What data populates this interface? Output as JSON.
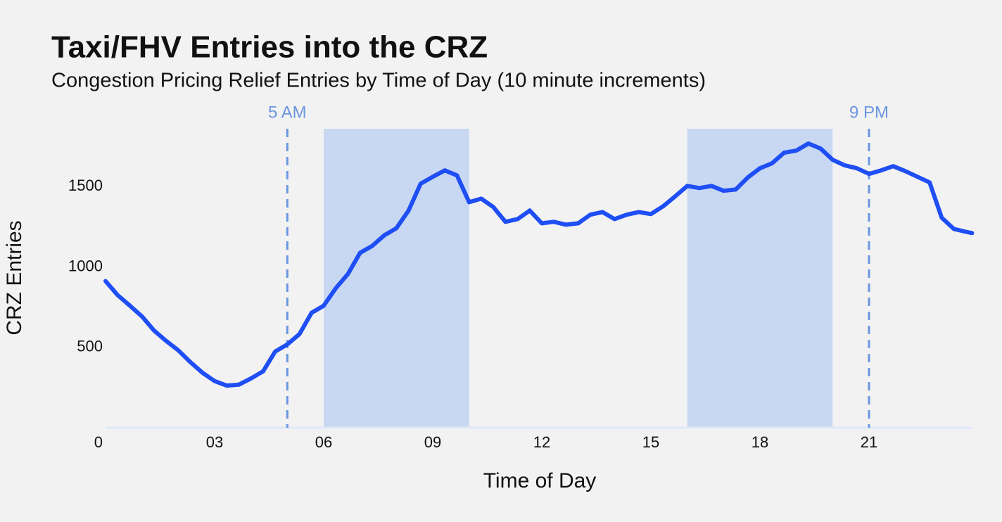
{
  "chart_data": {
    "type": "line",
    "title": "Taxi/FHV Entries into the CRZ",
    "subtitle": "Congestion Pricing Relief Entries by Time of Day (10 minute increments)",
    "x_label": "Time of Day",
    "y_label": "CRZ Entries",
    "color": "#1f4ef5",
    "x": [
      0,
      20,
      40,
      60,
      80,
      100,
      120,
      140,
      160,
      180,
      200,
      220,
      240,
      260,
      280,
      300,
      320,
      340,
      360,
      380,
      400,
      420,
      440,
      460,
      480,
      500,
      520,
      540,
      560,
      580,
      600,
      620,
      640,
      660,
      680,
      700,
      720,
      740,
      760,
      780,
      800,
      820,
      840,
      860,
      880,
      900,
      920,
      940,
      960,
      980,
      1000,
      1020,
      1040,
      1060,
      1080,
      1100,
      1120,
      1140,
      1160,
      1180,
      1200,
      1220,
      1240,
      1260,
      1280,
      1300,
      1320,
      1340,
      1360,
      1380,
      1400,
      1420,
      1430
    ],
    "values": [
      912,
      825,
      760,
      693,
      605,
      540,
      482,
      408,
      342,
      290,
      262,
      268,
      307,
      351,
      474,
      518,
      583,
      715,
      759,
      868,
      956,
      1088,
      1131,
      1197,
      1241,
      1351,
      1518,
      1561,
      1601,
      1570,
      1403,
      1425,
      1373,
      1281,
      1298,
      1351,
      1272,
      1281,
      1263,
      1272,
      1325,
      1342,
      1298,
      1325,
      1342,
      1329,
      1377,
      1439,
      1504,
      1491,
      1504,
      1474,
      1482,
      1557,
      1614,
      1645,
      1711,
      1724,
      1768,
      1737,
      1667,
      1632,
      1614,
      1579,
      1601,
      1627,
      1596,
      1561,
      1526,
      1307,
      1237,
      1219,
      1211
    ],
    "xlim": [
      0,
      1440
    ],
    "xticks": [
      0,
      {
        "value": 180,
        "label": "03"
      },
      {
        "value": 360,
        "label": "06"
      },
      {
        "value": 540,
        "label": "09"
      },
      {
        "value": 720,
        "label": "12"
      },
      {
        "value": 900,
        "label": "15"
      },
      {
        "value": 1080,
        "label": "18"
      },
      {
        "value": 1260,
        "label": "21"
      }
    ],
    "ylim": [
      0,
      1860
    ],
    "yticks": [
      500,
      1000,
      1500
    ],
    "grid": false,
    "shaded_ranges": [
      [
        360,
        600
      ],
      [
        960,
        1200
      ]
    ],
    "shade_color": "#c8d8f2",
    "reference_lines": [
      {
        "x": 300,
        "label": "5 AM"
      },
      {
        "x": 1260,
        "label": "9 PM"
      }
    ],
    "reference_color": "#6a96e0"
  }
}
